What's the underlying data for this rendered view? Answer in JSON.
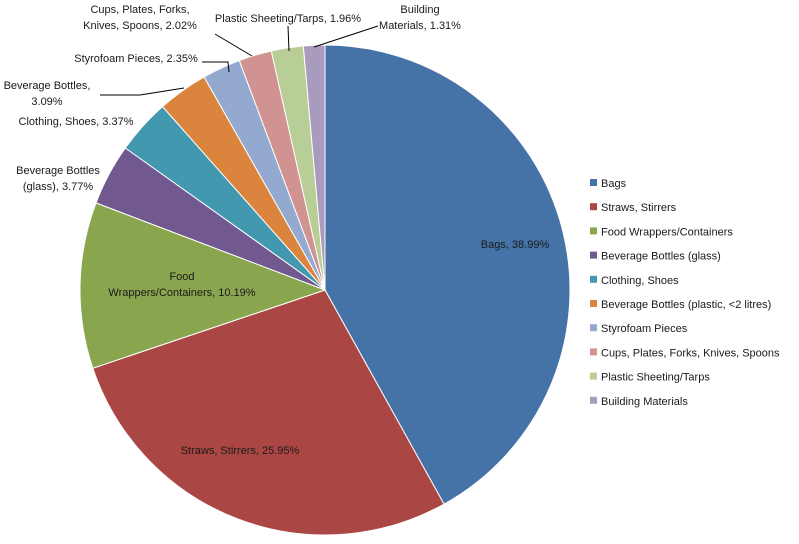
{
  "chart_data": {
    "type": "pie",
    "title": "",
    "categories": [
      "Bags",
      "Straws, Stirrers",
      "Food Wrappers/Containers",
      "Beverage Bottles (glass)",
      "Clothing, Shoes",
      "Beverage Bottles (plastic, <2 litres)",
      "Styrofoam Pieces",
      "Cups, Plates, Forks, Knives, Spoons",
      "Plastic Sheeting/Tarps",
      "Building Materials"
    ],
    "values": [
      38.99,
      25.95,
      10.19,
      3.77,
      3.37,
      3.09,
      2.35,
      2.02,
      1.96,
      1.31
    ],
    "colors": [
      "#4572A7",
      "#AA4643",
      "#89A54E",
      "#71588F",
      "#4198AF",
      "#DB843D",
      "#93A9CF",
      "#D19392",
      "#B9CD96",
      "#A99BBD"
    ],
    "data_labels": [
      [
        "Bags, 38.99%"
      ],
      [
        "Straws, Stirrers, 25.95%"
      ],
      [
        "Food",
        "Wrappers/Containers, 10.19%"
      ],
      [
        "Beverage Bottles",
        "(glass), 3.77%"
      ],
      [
        "Clothing, Shoes, 3.37%"
      ],
      [
        "Beverage Bottles,",
        "3.09%"
      ],
      [
        "Styrofoam Pieces, 2.35%"
      ],
      [
        "Cups, Plates, Forks,",
        "Knives, Spoons, 2.02%"
      ],
      [
        "Plastic Sheeting/Tarps, 1.96%"
      ],
      [
        "Building",
        "Materials, 1.31%"
      ]
    ],
    "legend_position": "right"
  }
}
